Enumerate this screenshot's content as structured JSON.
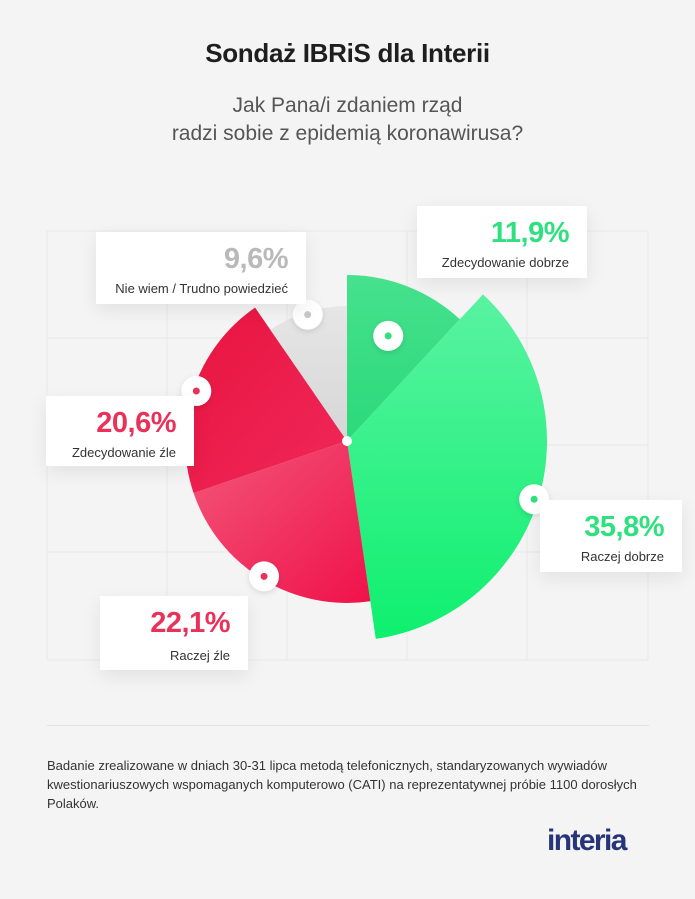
{
  "title": "Sondaż IBRiS dla Interii",
  "question": {
    "line1": "Jak Pana/i zdaniem rząd",
    "line2": "radzi sobie z epidemią koronawirusa?"
  },
  "chart_data": {
    "type": "pie",
    "title": "Sondaż IBRiS dla Interii",
    "subtitle": "Jak Pana/i zdaniem rząd radzi sobie z epidemią koronawirusa?",
    "unit": "%",
    "slices": [
      {
        "key": "zdecydowanie_dobrze",
        "label": "Zdecydowanie dobrze",
        "value": 11.9,
        "display": "11,9%",
        "color": "#3ee38b"
      },
      {
        "key": "raczej_dobrze",
        "label": "Raczej dobrze",
        "value": 35.8,
        "display": "35,8%",
        "color": "#2ef07f"
      },
      {
        "key": "raczej_zle",
        "label": "Raczej źle",
        "value": 22.1,
        "display": "22,1%",
        "color": "#ee2c52"
      },
      {
        "key": "zdecydowanie_zle",
        "label": "Zdecydowanie źle",
        "value": 20.6,
        "display": "20,6%",
        "color": "#ee1e48"
      },
      {
        "key": "nie_wiem",
        "label": "Nie wiem / Trudno powiedzieć",
        "value": 9.6,
        "display": "9,6%",
        "color": "#dcdcdc"
      }
    ]
  },
  "note": "Badanie zrealizowane w dniach 30-31 lipca metodą telefonicznych, standaryzowanych wywiadów kwestionariuszowych wspomaganych komputerowo (CATI) na reprezentatywnej próbie 1100 dorosłych Polaków.",
  "logo": "interia",
  "colors": {
    "positive": "#30e07f",
    "negative": "#e8325a",
    "neutral": "#b9b9b9",
    "brand": "#27347a"
  }
}
